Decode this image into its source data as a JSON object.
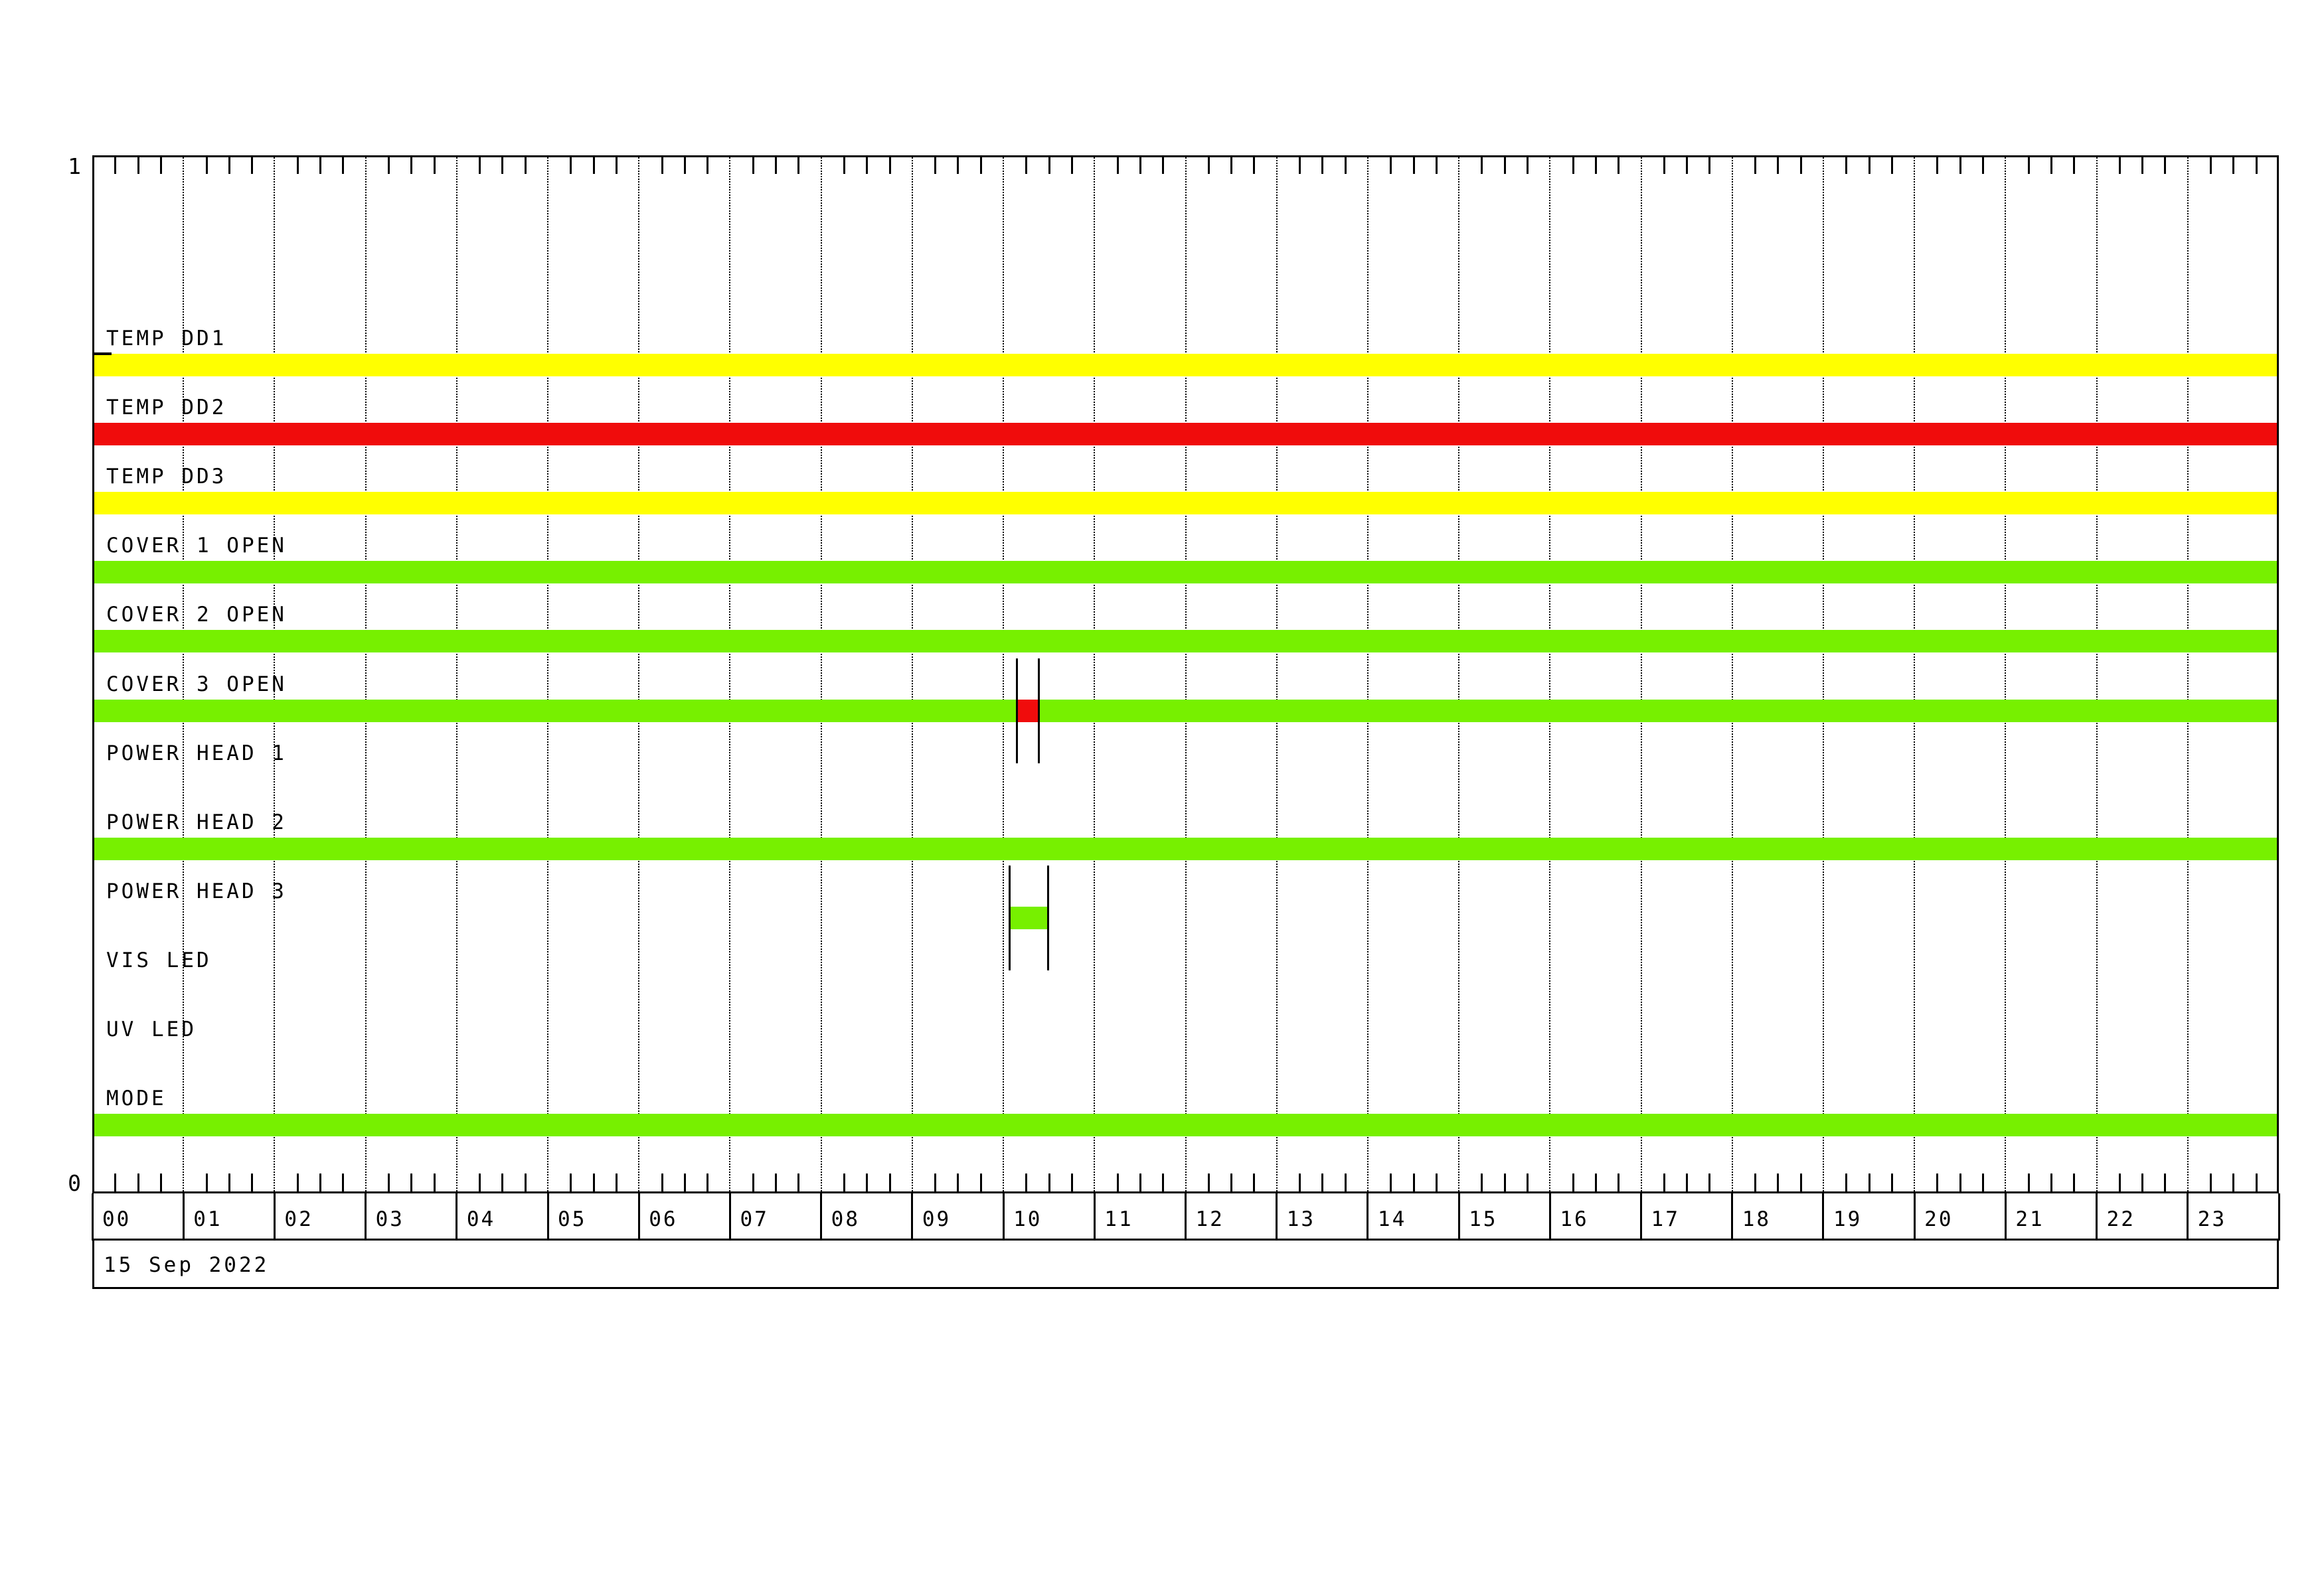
{
  "chart_data": {
    "type": "timeline",
    "title": "",
    "date_label": "15 Sep 2022",
    "x_axis": {
      "unit": "hour",
      "range": [
        0,
        24
      ],
      "tick_labels": [
        "00",
        "01",
        "02",
        "03",
        "04",
        "05",
        "06",
        "07",
        "08",
        "09",
        "10",
        "11",
        "12",
        "13",
        "14",
        "15",
        "16",
        "17",
        "18",
        "19",
        "20",
        "21",
        "22",
        "23"
      ],
      "minor_tick_minutes": 15,
      "gridlines": "hourly-dotted"
    },
    "y_axis": {
      "top_label": "1",
      "bottom_label": "0"
    },
    "colors": {
      "on_green": "#77F000",
      "alert_red": "#F00C0C",
      "warn_yellow": "#FFFF00",
      "axis": "#000000",
      "background": "#FFFFFF"
    },
    "legend": "none",
    "series": [
      {
        "name": "TEMP DD1",
        "intervals": [
          {
            "start_hour": 0,
            "end_hour": 24,
            "color": "warn_yellow"
          }
        ],
        "transition_markers_hours": [],
        "top_edge_mark_hours": [
          0,
          0.21
        ]
      },
      {
        "name": "TEMP DD2",
        "intervals": [
          {
            "start_hour": 0,
            "end_hour": 24,
            "color": "alert_red"
          }
        ],
        "transition_markers_hours": []
      },
      {
        "name": "TEMP DD3",
        "intervals": [
          {
            "start_hour": 0,
            "end_hour": 24,
            "color": "warn_yellow"
          }
        ],
        "transition_markers_hours": []
      },
      {
        "name": "COVER 1 OPEN",
        "intervals": [
          {
            "start_hour": 0,
            "end_hour": 24,
            "color": "on_green"
          }
        ],
        "transition_markers_hours": []
      },
      {
        "name": "COVER 2 OPEN",
        "intervals": [
          {
            "start_hour": 0,
            "end_hour": 24,
            "color": "on_green"
          }
        ],
        "transition_markers_hours": []
      },
      {
        "name": "COVER 3 OPEN",
        "intervals": [
          {
            "start_hour": 0,
            "end_hour": 10.15,
            "color": "on_green"
          },
          {
            "start_hour": 10.15,
            "end_hour": 10.39,
            "color": "alert_red"
          },
          {
            "start_hour": 10.39,
            "end_hour": 24,
            "color": "on_green"
          }
        ],
        "transition_markers_hours": [
          10.15,
          10.39
        ]
      },
      {
        "name": "POWER HEAD 1",
        "intervals": [],
        "transition_markers_hours": []
      },
      {
        "name": "POWER HEAD 2",
        "intervals": [
          {
            "start_hour": 0,
            "end_hour": 24,
            "color": "on_green"
          }
        ],
        "transition_markers_hours": []
      },
      {
        "name": "POWER HEAD 3",
        "intervals": [
          {
            "start_hour": 10.07,
            "end_hour": 10.49,
            "color": "on_green"
          }
        ],
        "transition_markers_hours": [
          10.07,
          10.49
        ]
      },
      {
        "name": "VIS LED",
        "intervals": [],
        "transition_markers_hours": []
      },
      {
        "name": "UV LED",
        "intervals": [],
        "transition_markers_hours": []
      },
      {
        "name": "MODE",
        "intervals": [
          {
            "start_hour": 0,
            "end_hour": 24,
            "color": "on_green"
          }
        ],
        "transition_markers_hours": []
      }
    ]
  }
}
